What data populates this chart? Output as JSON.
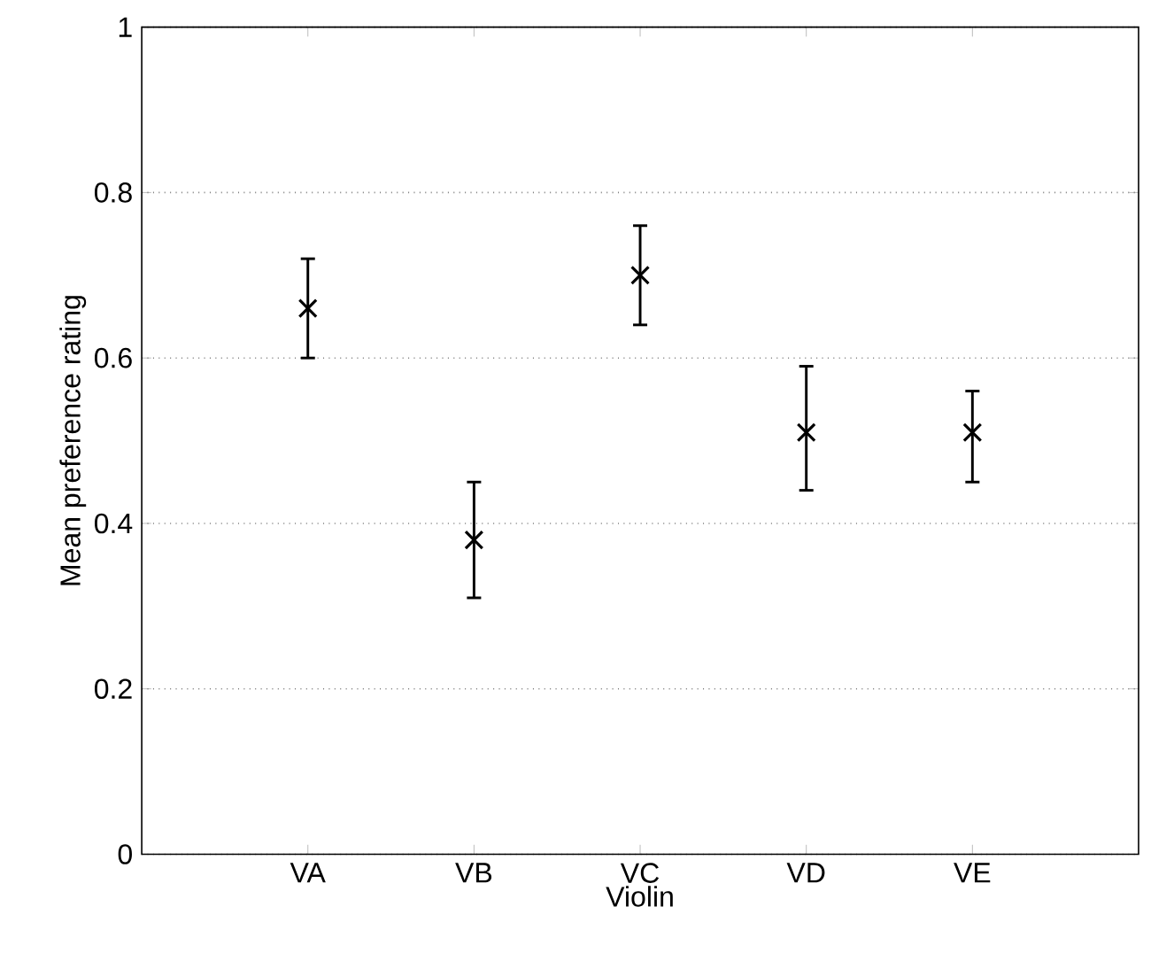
{
  "chart_data": {
    "type": "scatter",
    "xlabel": "Violin",
    "ylabel": "Mean preference rating",
    "categories": [
      "VA",
      "VB",
      "VC",
      "VD",
      "VE"
    ],
    "values": [
      0.66,
      0.38,
      0.7,
      0.51,
      0.51
    ],
    "errors": [
      [
        0.6,
        0.72
      ],
      [
        0.31,
        0.45
      ],
      [
        0.64,
        0.76
      ],
      [
        0.44,
        0.59
      ],
      [
        0.45,
        0.56
      ]
    ],
    "color": "#000000",
    "marker": "cross",
    "ylim": [
      0,
      1
    ],
    "yticks": [
      0,
      0.2,
      0.4,
      0.6,
      0.8,
      1
    ],
    "grid": "y"
  }
}
